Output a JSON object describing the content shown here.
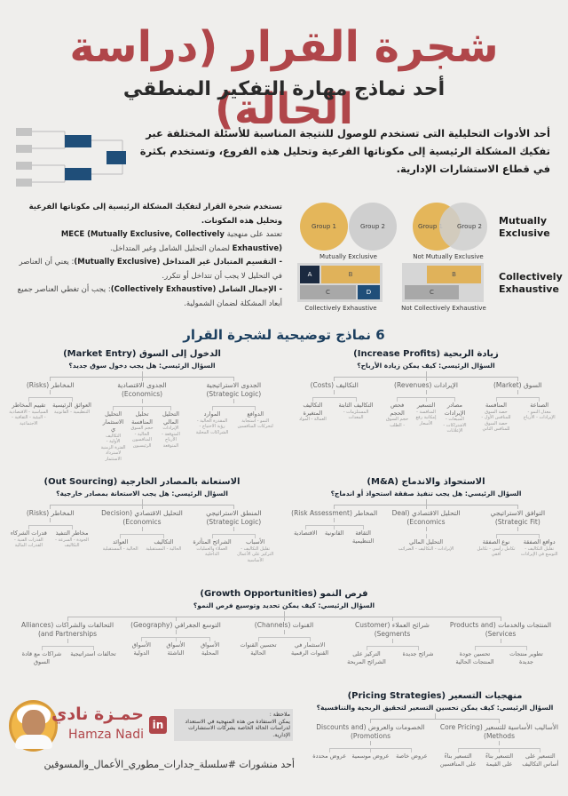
{
  "header": {
    "title": "شجرة القرار (دراسة الحالة)",
    "subtitle": "أحد نماذج مهارة التفكير المنطقي",
    "intro": "أحد الأدوات التحليلية التى تستخدم للوصول للنتيجة المناسبة للأسئلة المختلفة عبر تفكيك المشكلة الرئيسية إلى مكوناتها الفرعية وتحليل هذه الفروع، وتستخدم بكثرة في قطاع الاستشارات الإدارية."
  },
  "mece": {
    "line1": "تستخدم شجرة القرار لتفكيك المشكلة الرئيسية إلى مكوناتها الفرعية وتحليل هذه المكونات.",
    "line2_a": "تعتمد على منهجية",
    "line2_b": "MECE (Mutually Exclusive, Collectively Exhaustive)",
    "line2_c": "لضمان التحليل الشامل وغير المتداخل.",
    "me_a": "- التقسيم المتبادل غير المتداخل",
    "me_b": "(Mutually Exclusive)",
    "me_c": ": يعني أن العناصر في التحليل لا يجب أن تتداخل أو تتكرر.",
    "ce_a": "- الإجمال الشامل",
    "ce_b": "(Collectively Exhaustive)",
    "ce_c": ": يجب أن تغطي العناصر جميع أبعاد المشكلة لضمان الشمولية.",
    "diagram": {
      "group1": "Group 1",
      "group2": "Group 2",
      "me_caption": "Mutually Exclusive",
      "nme_caption": "Not Mutually Exclusive",
      "ce_caption": "Collectively Exhaustive",
      "nce_caption": "Not Collectively Exhaustive",
      "a": "A",
      "b": "B",
      "c": "C",
      "d": "D"
    },
    "label_me": "Mutually Exclusive",
    "label_ce": "Collectively Exhaustive",
    "colors": {
      "gold": "#e4b65a",
      "gray": "#cfcfcf",
      "navy": "#1b2a40",
      "blue": "#1f4e79"
    }
  },
  "models_heading": "6 نماذج توضيحية لشجرة القرار",
  "trees": [
    {
      "title": "زيادة الربحية (Increase Profits)",
      "question": "السؤال الرئيسي: كيف يمكن زيادة الأرباح؟",
      "branches": [
        {
          "label": "السوق (Market)",
          "kids": [
            {
              "label": "الصناعة",
              "sub": "معدل النمو - الإيرادات - الأرباح"
            },
            {
              "label": "المنافسة",
              "sub": "حصة السوق للمنافس الأول - حصة السوق للمنافس الثاني"
            }
          ]
        },
        {
          "label": "الإيرادات (Revenues)",
          "kids": [
            {
              "label": "مصادر الإيرادات",
              "sub": "المبيعات - الاشتراكات - الإعلانات"
            },
            {
              "label": "التسعير",
              "sub": "المنافسة - إمكانية رفع الأسعار"
            },
            {
              "label": "فحص الحجم",
              "sub": "حجم السوق - الطلب"
            }
          ]
        },
        {
          "label": "التكاليف (Costs)",
          "kids": [
            {
              "label": "التكاليف الثابتة",
              "sub": "المستلزمات - المعدات"
            },
            {
              "label": "التكاليف المتغيرة",
              "sub": "العمالة - المواد"
            }
          ]
        }
      ]
    },
    {
      "title": "الدخول إلى السوق (Market Entry)",
      "question": "السؤال الرئيسي: هل يجب دخول سوق جديد؟",
      "branches": [
        {
          "label": "الجدوى الاستراتيجية (Strategic Logic)",
          "kids": [
            {
              "label": "الدوافع",
              "sub": "النمو - استجابة لتحركات المنافسين"
            },
            {
              "label": "الموارد",
              "sub": "المقدرة الحالية - رؤية الاحتياج - الشراكات المحلية"
            }
          ]
        },
        {
          "label": "الجدوى الاقتصادية (Economics)",
          "kids": [
            {
              "label": "التحليل المالي",
              "sub": "الإيرادات المتوقعة - الأرباح المتوقعة"
            },
            {
              "label": "تحليل المنافسة",
              "sub": "حجم السوق الحالية - المنافسون الرئيسيون"
            },
            {
              "label": "التحليل الاستثماري",
              "sub": "التكاليف الأولية - الفترة الزمنية لاسترداد الاستثمار"
            }
          ]
        },
        {
          "label": "المخاطر (Risks)",
          "kids": [
            {
              "label": "العوائق الرئيسية",
              "sub": "التنظيمية - القانونية"
            },
            {
              "label": "تقييم المخاطر",
              "sub": "السياسية - الاقتصادية - البيئية - الثقافية - الاجتماعية"
            }
          ]
        }
      ]
    },
    {
      "title": "الاستحواذ والاندماج (M&A)",
      "question": "السؤال الرئيسي: هل يجب تنفيذ صفقة استحواذ أو اندماج؟",
      "branches": [
        {
          "label": "التوافق الاستراتيجي (Strategic Fit)",
          "kids": [
            {
              "label": "دوافع الصفقة",
              "sub": "تقليل التكاليف - التوسع في الإيرادات"
            },
            {
              "label": "نوع الصفقة",
              "sub": "تكامل رأسي - تكامل أفقي"
            }
          ]
        },
        {
          "label": "التحليل الاقتصادي (Deal Economics)",
          "kids": [
            {
              "label": "التحليل المالي",
              "sub": "الإيرادات - التكاليف - الضرائب"
            }
          ]
        },
        {
          "label": "المخاطر (Risk Assessment)",
          "kids": [
            {
              "label": "الثقافة التنظيمية",
              "sub": ""
            },
            {
              "label": "القانونية",
              "sub": ""
            },
            {
              "label": "الاقتصادية",
              "sub": ""
            }
          ]
        }
      ]
    },
    {
      "title": "الاستعانة بالمصادر الخارجية (Out Sourcing)",
      "question": "السؤال الرئيسي: هل يجب الاستعانة بمصادر خارجية؟",
      "branches": [
        {
          "label": "المنطق الاستراتيجي (Strategic Logic)",
          "kids": [
            {
              "label": "الأسباب",
              "sub": "تقليل التكاليف - التركيز على الأعمال الأساسية"
            },
            {
              "label": "الشرائح المتأثرة",
              "sub": "العملاء والعمليات الداخلية"
            }
          ]
        },
        {
          "label": "التحليل الاقتصادي (Decision Economics)",
          "kids": [
            {
              "label": "التكاليف",
              "sub": "الحالية - المستقبلية"
            },
            {
              "label": "العوائد",
              "sub": "الحالية - المستقبلية"
            }
          ]
        },
        {
          "label": "المخاطر (Risks)",
          "kids": [
            {
              "label": "مخاطر التنفيذ",
              "sub": "الجودة - السرعة - التكاليف"
            },
            {
              "label": "قدرات الشركاء",
              "sub": "القدرات الفنية - القدرات المالية"
            }
          ]
        }
      ]
    },
    {
      "title": "فرص النمو (Growth Opportunities)",
      "question": "السؤال الرئيسي: كيف يمكن تحديد وتوسيع فرص النمو؟",
      "branches": [
        {
          "label": "المنتجات والخدمات (Products and Services)",
          "kids": [
            {
              "label": "تطوير منتجات جديدة",
              "sub": ""
            },
            {
              "label": "تحسين جودة المنتجات الحالية",
              "sub": ""
            }
          ]
        },
        {
          "label": "شرائح العملاء (Customer Segments)",
          "kids": [
            {
              "label": "شرائح جديدة",
              "sub": ""
            },
            {
              "label": "التركيز على الشرائح المربحة",
              "sub": ""
            }
          ]
        },
        {
          "label": "القنوات (Channels)",
          "kids": [
            {
              "label": "الاستثمار في القنوات الرقمية",
              "sub": ""
            },
            {
              "label": "تحسين القنوات الحالية",
              "sub": ""
            }
          ]
        },
        {
          "label": "التوسع الجغرافي (Geography)",
          "kids": [
            {
              "label": "الأسواق المحلية",
              "sub": ""
            },
            {
              "label": "الأسواق الناشئة",
              "sub": ""
            },
            {
              "label": "الأسواق الدولية",
              "sub": ""
            }
          ]
        },
        {
          "label": "التحالفات والشراكات (Alliances and Partnerships)",
          "kids": [
            {
              "label": "تحالفات استراتيجية",
              "sub": ""
            },
            {
              "label": "شراكات مع قادة السوق",
              "sub": ""
            }
          ]
        }
      ]
    },
    {
      "title": "منهجيات التسعير (Pricing Strategies)",
      "question": "السؤال الرئيسي: كيف يمكن تحسين التسعير لتحقيق الربحية والتنافسية؟",
      "branches": [
        {
          "label": "الأساليب الأساسية للتسعير (Core Pricing Methods)",
          "kids": [
            {
              "label": "التسعير على أساس التكاليف",
              "sub": ""
            },
            {
              "label": "التسعير بناءً على القيمة",
              "sub": ""
            },
            {
              "label": "التسعير بناءً على المنافسين",
              "sub": ""
            }
          ]
        },
        {
          "label": "الخصومات والعروض (Discounts and Promotions)",
          "kids": [
            {
              "label": "عروض خاصة",
              "sub": ""
            },
            {
              "label": "عروض موسمية",
              "sub": ""
            },
            {
              "label": "عروض محددة",
              "sub": ""
            }
          ]
        }
      ]
    }
  ],
  "footer": {
    "name_ar": "حمـزة نادي",
    "name_en": "Hamza Nadi",
    "linkedin_icon": "in",
    "note_title": "ملاحظة :",
    "note_body": "يمكن الاستفادة من هذه المنهجية في الاستعداد لدراسات الحالة الخاصة بشركات الاستشارات الإدارية.",
    "hashtag": "أحد منشورات #سلسلة_جدارات_مطوري_الأعمال_والمسوقين"
  }
}
